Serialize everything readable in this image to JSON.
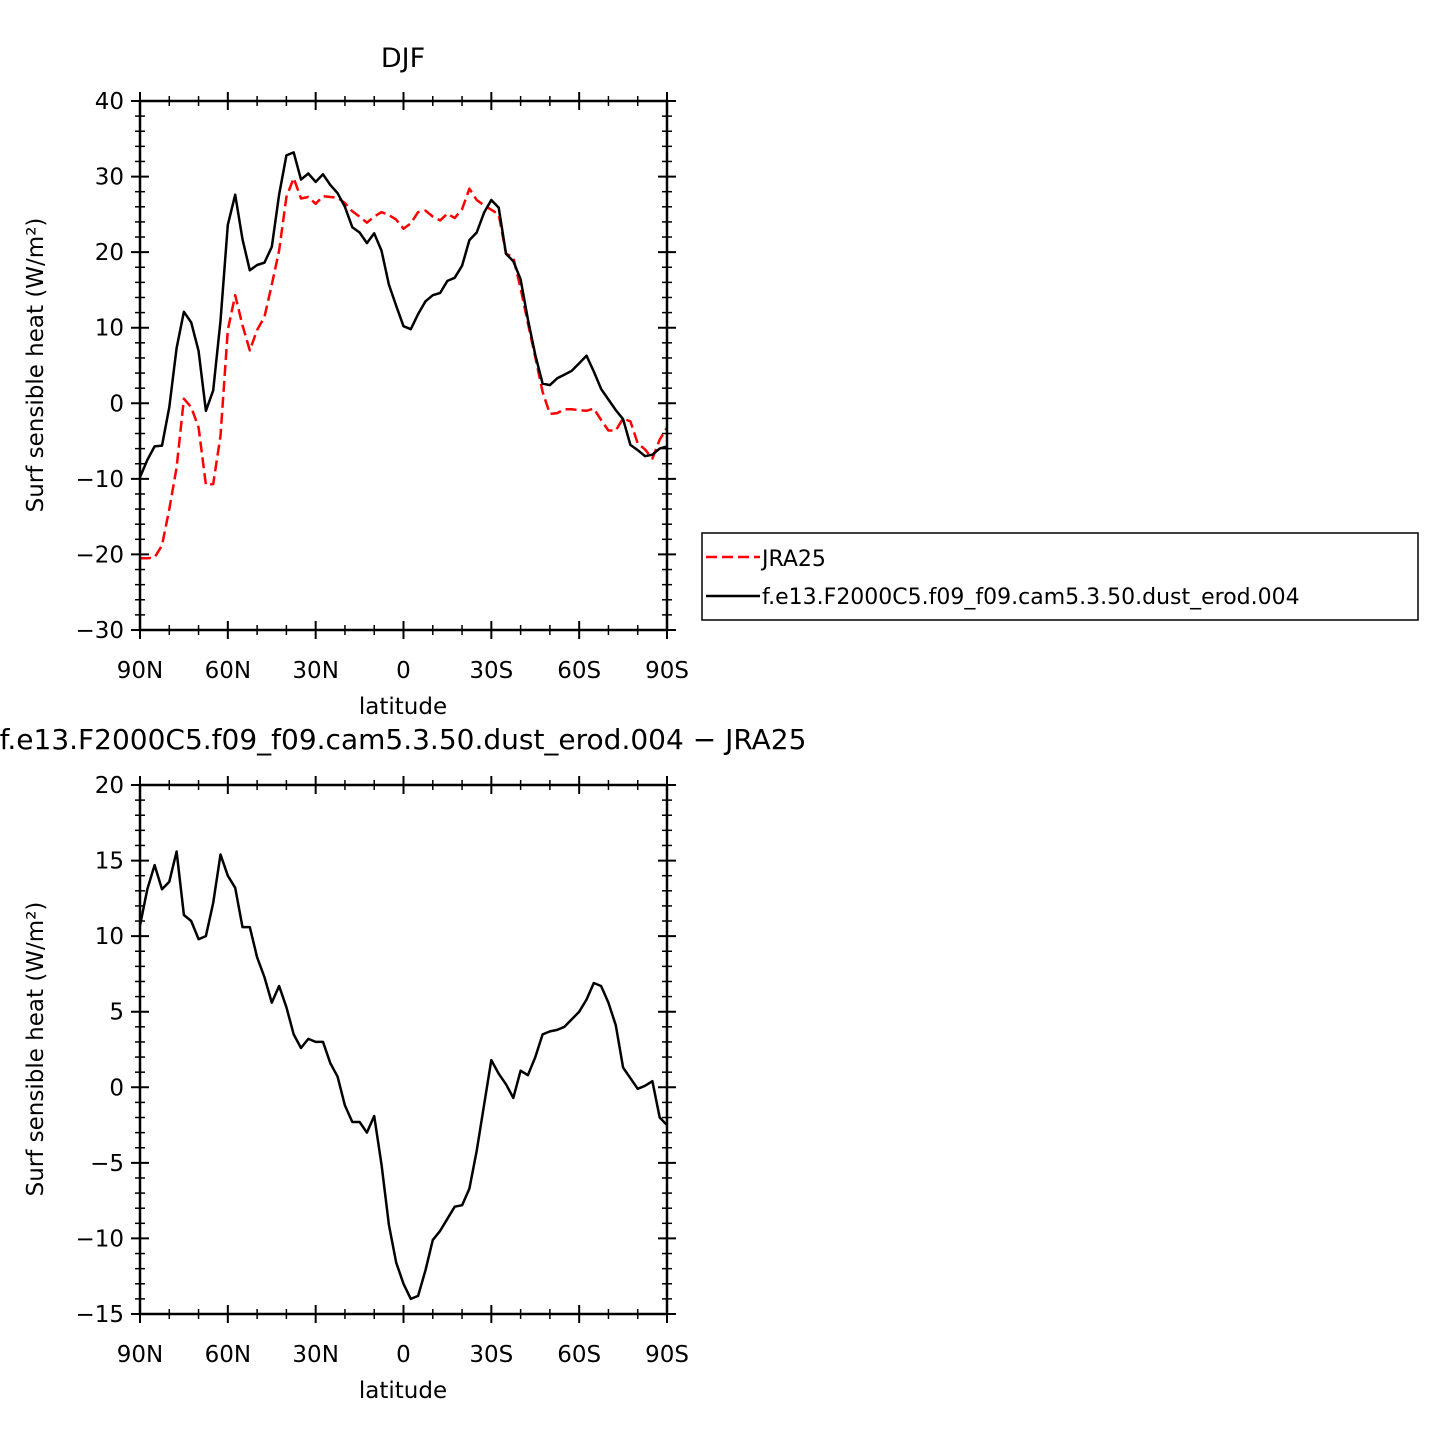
{
  "chart_data": [
    {
      "type": "line",
      "title": "DJF",
      "xlabel": "latitude",
      "ylabel": "Surf sensible heat (W/m²)",
      "xlim": [
        90,
        -90
      ],
      "ylim": [
        -30,
        40
      ],
      "x_ticks": [
        {
          "value": 90,
          "label": "90N"
        },
        {
          "value": 60,
          "label": "60N"
        },
        {
          "value": 30,
          "label": "30N"
        },
        {
          "value": 0,
          "label": "0"
        },
        {
          "value": -30,
          "label": "30S"
        },
        {
          "value": -60,
          "label": "60S"
        },
        {
          "value": -90,
          "label": "90S"
        }
      ],
      "y_ticks": [
        {
          "value": 40,
          "label": "40"
        },
        {
          "value": 30,
          "label": "30"
        },
        {
          "value": 20,
          "label": "20"
        },
        {
          "value": 10,
          "label": "10"
        },
        {
          "value": 0,
          "label": "0"
        },
        {
          "value": -10,
          "label": "−10"
        },
        {
          "value": -20,
          "label": "−20"
        },
        {
          "value": -30,
          "label": "−30"
        }
      ],
      "legend": "right",
      "series": [
        {
          "name": "JRA25",
          "color": "#ff0000",
          "dash": "dashed",
          "x": [
            90,
            87.5,
            85,
            82.5,
            80,
            77.5,
            75,
            72.5,
            70,
            67.5,
            65,
            62.5,
            60,
            57.5,
            55,
            52.5,
            50,
            47.5,
            45,
            42.5,
            40,
            37.5,
            35,
            32.5,
            30,
            27.5,
            25,
            22.5,
            20,
            17.5,
            15,
            12.5,
            10,
            7.5,
            5,
            2.5,
            0,
            -2.5,
            -5,
            -7.5,
            -10,
            -12.5,
            -15,
            -17.5,
            -20,
            -22.5,
            -25,
            -27.5,
            -30,
            -32.5,
            -35,
            -37.5,
            -40,
            -42.5,
            -45,
            -47.5,
            -50,
            -52.5,
            -55,
            -57.5,
            -60,
            -62.5,
            -65,
            -67.5,
            -70,
            -72.5,
            -75,
            -77.5,
            -80,
            -82.5,
            -85,
            -87.5,
            -90
          ],
          "y": [
            -20.5,
            -20.5,
            -20.4,
            -18.8,
            -14,
            -8.5,
            0.6,
            -0.5,
            -3.2,
            -10.8,
            -10.7,
            -4.3,
            9.7,
            14.3,
            10.3,
            7,
            9.7,
            11.4,
            15.7,
            20.2,
            27.3,
            29.8,
            27.1,
            27.3,
            26.4,
            27.4,
            27.3,
            27.2,
            26.5,
            25.4,
            24.7,
            23.9,
            24.7,
            25.3,
            24.9,
            24.3,
            23.1,
            23.8,
            25.3,
            25.5,
            24.7,
            24.2,
            25.1,
            24.5,
            25.7,
            28.4,
            26.9,
            26.2,
            25.6,
            25,
            19.8,
            19.3,
            15.2,
            10.6,
            6.1,
            1.5,
            -1.4,
            -1.3,
            -0.8,
            -0.8,
            -0.9,
            -1,
            -0.7,
            -2.2,
            -3.6,
            -3.6,
            -2,
            -2.4,
            -5.3,
            -6.1,
            -7.3,
            -4.8,
            -3.2
          ]
        },
        {
          "name": "f.e13.F2000C5.f09_f09.cam5.3.50.dust_erod.004",
          "color": "#000000",
          "dash": "solid",
          "x": [
            90,
            87.5,
            85,
            82.5,
            80,
            77.5,
            75,
            72.5,
            70,
            67.5,
            65,
            62.5,
            60,
            57.5,
            55,
            52.5,
            50,
            47.5,
            45,
            42.5,
            40,
            37.5,
            35,
            32.5,
            30,
            27.5,
            25,
            22.5,
            20,
            17.5,
            15,
            12.5,
            10,
            7.5,
            5,
            2.5,
            0,
            -2.5,
            -5,
            -7.5,
            -10,
            -12.5,
            -15,
            -17.5,
            -20,
            -22.5,
            -25,
            -27.5,
            -30,
            -32.5,
            -35,
            -37.5,
            -40,
            -42.5,
            -45,
            -47.5,
            -50,
            -52.5,
            -55,
            -57.5,
            -60,
            -62.5,
            -65,
            -67.5,
            -70,
            -72.5,
            -75,
            -77.5,
            -80,
            -82.5,
            -85,
            -87.5,
            -90
          ],
          "y": [
            -9.8,
            -7.5,
            -5.7,
            -5.6,
            -0.5,
            7.3,
            12.1,
            10.7,
            6.9,
            -1,
            1.7,
            10.9,
            23.6,
            27.6,
            21.7,
            17.6,
            18.3,
            18.6,
            20.7,
            27.6,
            32.8,
            33.2,
            29.6,
            30.4,
            29.3,
            30.3,
            28.9,
            27.8,
            26,
            23.3,
            22.6,
            21.2,
            22.5,
            20.2,
            15.7,
            12.9,
            10.2,
            9.8,
            11.8,
            13.5,
            14.3,
            14.6,
            16.2,
            16.6,
            18.2,
            21.6,
            22.6,
            25.2,
            26.9,
            25.9,
            19.8,
            18.8,
            16.4,
            11.1,
            6.4,
            2.6,
            2.4,
            3.3,
            3.8,
            4.3,
            5.3,
            6.3,
            4.2,
            1.9,
            0.5,
            -0.9,
            -2.1,
            -5.5,
            -6.2,
            -7,
            -6.8,
            -6,
            -5.7
          ]
        }
      ]
    },
    {
      "type": "line",
      "title": "f.e13.F2000C5.f09_f09.cam5.3.50.dust_erod.004 − JRA25",
      "xlabel": "latitude",
      "ylabel": "Surf sensible heat (W/m²)",
      "xlim": [
        90,
        -90
      ],
      "ylim": [
        -15,
        20
      ],
      "x_ticks": [
        {
          "value": 90,
          "label": "90N"
        },
        {
          "value": 60,
          "label": "60N"
        },
        {
          "value": 30,
          "label": "30N"
        },
        {
          "value": 0,
          "label": "0"
        },
        {
          "value": -30,
          "label": "30S"
        },
        {
          "value": -60,
          "label": "60S"
        },
        {
          "value": -90,
          "label": "90S"
        }
      ],
      "y_ticks": [
        {
          "value": 20,
          "label": "20"
        },
        {
          "value": 15,
          "label": "15"
        },
        {
          "value": 10,
          "label": "10"
        },
        {
          "value": 5,
          "label": "5"
        },
        {
          "value": 0,
          "label": "0"
        },
        {
          "value": -5,
          "label": "−5"
        },
        {
          "value": -10,
          "label": "−10"
        },
        {
          "value": -15,
          "label": "−15"
        }
      ],
      "series": [
        {
          "color": "#000000",
          "dash": "solid",
          "x": [
            90,
            87.5,
            85,
            82.5,
            80,
            77.5,
            75,
            72.5,
            70,
            67.5,
            65,
            62.5,
            60,
            57.5,
            55,
            52.5,
            50,
            47.5,
            45,
            42.5,
            40,
            37.5,
            35,
            32.5,
            30,
            27.5,
            25,
            22.5,
            20,
            17.5,
            15,
            12.5,
            10,
            7.5,
            5,
            2.5,
            0,
            -2.5,
            -5,
            -7.5,
            -10,
            -12.5,
            -15,
            -17.5,
            -20,
            -22.5,
            -25,
            -27.5,
            -30,
            -32.5,
            -35,
            -37.5,
            -40,
            -42.5,
            -45,
            -47.5,
            -50,
            -52.5,
            -55,
            -57.5,
            -60,
            -62.5,
            -65,
            -67.5,
            -70,
            -72.5,
            -75,
            -77.5,
            -80,
            -82.5,
            -85,
            -87.5,
            -90
          ],
          "y": [
            10.7,
            13.1,
            14.7,
            13.1,
            13.6,
            15.6,
            11.4,
            11,
            9.8,
            10,
            12.2,
            15.4,
            14,
            13.2,
            10.6,
            10.6,
            8.6,
            7.3,
            5.6,
            6.7,
            5.3,
            3.5,
            2.6,
            3.2,
            3,
            3,
            1.6,
            0.7,
            -1.2,
            -2.3,
            -2.3,
            -3,
            -1.9,
            -5.1,
            -9.1,
            -11.6,
            -13,
            -14,
            -13.8,
            -12.1,
            -10.1,
            -9.5,
            -8.7,
            -7.9,
            -7.8,
            -6.7,
            -4.2,
            -1.2,
            1.8,
            0.9,
            0.2,
            -0.7,
            1.1,
            0.8,
            2,
            3.5,
            3.7,
            3.8,
            4,
            4.5,
            5,
            5.8,
            6.9,
            6.7,
            5.6,
            4.1,
            1.3,
            0.6,
            -0.1,
            0.1,
            0.4,
            -2,
            -2.5
          ]
        }
      ]
    }
  ]
}
